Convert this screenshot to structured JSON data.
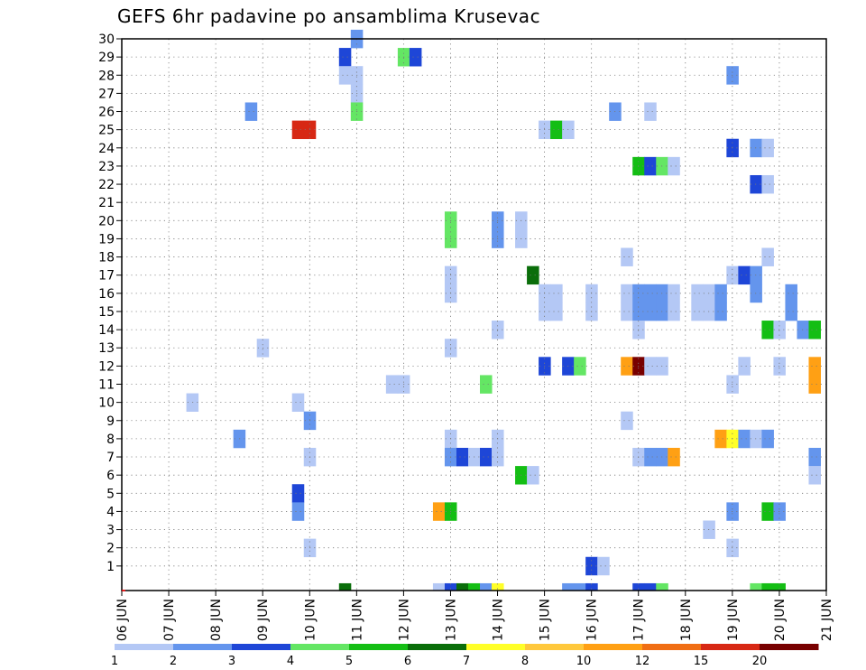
{
  "title": "GEFS 6hr padavine po ansamblima Krusevac",
  "colors": {
    "c1": "#b4c8f5",
    "c2": "#6495ed",
    "c3": "#1e46d7",
    "c4": "#64e664",
    "c5": "#14be14",
    "c6": "#0a6e0a",
    "c7": "#ffff28",
    "c8": "#ffc83c",
    "c10": "#ffa014",
    "c12": "#f06e14",
    "c15": "#d72814",
    "c20": "#780000"
  },
  "chart_data": {
    "type": "heatmap",
    "title": "GEFS 6hr padavine po ansamblima Krusevac",
    "xlabel": "",
    "ylabel": "",
    "x_tick_labels": [
      "06 JUN",
      "07 JUN",
      "08 JUN",
      "09 JUN",
      "10 JUN",
      "11 JUN",
      "12 JUN",
      "13 JUN",
      "14 JUN",
      "15 JUN",
      "16 JUN",
      "17 JUN",
      "18 JUN",
      "19 JUN",
      "20 JUN",
      "21 JUN"
    ],
    "x_range_days": [
      0,
      15
    ],
    "y_tick_labels": [
      "1",
      "2",
      "3",
      "4",
      "5",
      "6",
      "7",
      "8",
      "9",
      "10",
      "11",
      "12",
      "13",
      "14",
      "15",
      "16",
      "17",
      "18",
      "19",
      "20",
      "21",
      "22",
      "23",
      "24",
      "25",
      "26",
      "27",
      "28",
      "29",
      "30"
    ],
    "y_range": [
      0,
      30
    ],
    "grid": true,
    "legend": {
      "position": "bottom",
      "levels": [
        "1",
        "2",
        "3",
        "4",
        "5",
        "6",
        "7",
        "8",
        "10",
        "12",
        "15",
        "20"
      ],
      "colors": [
        "c1",
        "c2",
        "c3",
        "c4",
        "c5",
        "c6",
        "c7",
        "c8",
        "c10",
        "c12",
        "c15",
        "c20"
      ]
    },
    "cells": [
      {
        "m": 30,
        "t": [
          [
            5.0,
            "c2"
          ]
        ]
      },
      {
        "m": 29,
        "t": [
          [
            4.75,
            "c3"
          ],
          [
            6.0,
            "c4"
          ],
          [
            6.25,
            "c3"
          ]
        ]
      },
      {
        "m": 28,
        "t": [
          [
            4.75,
            "c1"
          ],
          [
            5.0,
            "c1"
          ],
          [
            13.0,
            "c2"
          ]
        ]
      },
      {
        "m": 27,
        "t": [
          [
            5.0,
            "c1"
          ]
        ]
      },
      {
        "m": 26,
        "t": [
          [
            2.75,
            "c2"
          ],
          [
            5.0,
            "c4"
          ],
          [
            10.5,
            "c2"
          ],
          [
            11.25,
            "c1"
          ]
        ]
      },
      {
        "m": 25,
        "t": [
          [
            3.75,
            "c15"
          ],
          [
            4.0,
            "c15"
          ],
          [
            9.0,
            "c1"
          ],
          [
            9.25,
            "c5"
          ],
          [
            9.5,
            "c1"
          ]
        ]
      },
      {
        "m": 24,
        "t": [
          [
            13.0,
            "c3"
          ],
          [
            13.5,
            "c2"
          ],
          [
            13.75,
            "c1"
          ]
        ]
      },
      {
        "m": 23,
        "t": [
          [
            11.0,
            "c5"
          ],
          [
            11.25,
            "c3"
          ],
          [
            11.5,
            "c4"
          ],
          [
            11.75,
            "c1"
          ]
        ]
      },
      {
        "m": 22,
        "t": [
          [
            13.5,
            "c3"
          ],
          [
            13.75,
            "c1"
          ]
        ]
      },
      {
        "m": 20,
        "t": [
          [
            7.0,
            "c4"
          ],
          [
            8.0,
            "c2"
          ],
          [
            8.5,
            "c1"
          ]
        ]
      },
      {
        "m": 19,
        "t": [
          [
            7.0,
            "c4"
          ],
          [
            8.0,
            "c2"
          ],
          [
            8.5,
            "c1"
          ]
        ]
      },
      {
        "m": 18,
        "t": [
          [
            10.75,
            "c1"
          ],
          [
            13.75,
            "c1"
          ]
        ]
      },
      {
        "m": 17,
        "t": [
          [
            7.0,
            "c1"
          ],
          [
            8.75,
            "c6"
          ],
          [
            13.0,
            "c1"
          ],
          [
            13.25,
            "c3"
          ],
          [
            13.5,
            "c2"
          ]
        ]
      },
      {
        "m": 16,
        "t": [
          [
            7.0,
            "c1"
          ],
          [
            9.0,
            "c1"
          ],
          [
            9.25,
            "c1"
          ],
          [
            10.0,
            "c1"
          ],
          [
            10.75,
            "c1"
          ],
          [
            11.0,
            "c2"
          ],
          [
            11.25,
            "c2"
          ],
          [
            11.5,
            "c2"
          ],
          [
            11.75,
            "c1"
          ],
          [
            12.25,
            "c1"
          ],
          [
            12.5,
            "c1"
          ],
          [
            12.75,
            "c2"
          ],
          [
            13.5,
            "c2"
          ],
          [
            14.25,
            "c2"
          ]
        ]
      },
      {
        "m": 15,
        "t": [
          [
            9.0,
            "c1"
          ],
          [
            9.25,
            "c1"
          ],
          [
            10.0,
            "c1"
          ],
          [
            10.75,
            "c1"
          ],
          [
            11.0,
            "c2"
          ],
          [
            11.25,
            "c2"
          ],
          [
            11.5,
            "c2"
          ],
          [
            11.75,
            "c1"
          ],
          [
            12.25,
            "c1"
          ],
          [
            12.5,
            "c1"
          ],
          [
            12.75,
            "c2"
          ],
          [
            14.25,
            "c2"
          ]
        ]
      },
      {
        "m": 14,
        "t": [
          [
            8.0,
            "c1"
          ],
          [
            11.0,
            "c1"
          ],
          [
            13.75,
            "c5"
          ],
          [
            14.0,
            "c1"
          ],
          [
            14.5,
            "c2"
          ],
          [
            14.75,
            "c5"
          ]
        ]
      },
      {
        "m": 13,
        "t": [
          [
            3.0,
            "c1"
          ],
          [
            7.0,
            "c1"
          ]
        ]
      },
      {
        "m": 12,
        "t": [
          [
            9.0,
            "c3"
          ],
          [
            9.5,
            "c3"
          ],
          [
            9.75,
            "c4"
          ],
          [
            10.75,
            "c10"
          ],
          [
            11.0,
            "c20"
          ],
          [
            11.25,
            "c1"
          ],
          [
            11.5,
            "c1"
          ],
          [
            13.25,
            "c1"
          ],
          [
            14.0,
            "c1"
          ],
          [
            14.75,
            "c10"
          ]
        ]
      },
      {
        "m": 11,
        "t": [
          [
            5.75,
            "c1"
          ],
          [
            6.0,
            "c1"
          ],
          [
            7.75,
            "c4"
          ],
          [
            13.0,
            "c1"
          ],
          [
            14.75,
            "c10"
          ]
        ]
      },
      {
        "m": 10,
        "t": [
          [
            1.5,
            "c1"
          ],
          [
            3.75,
            "c1"
          ]
        ]
      },
      {
        "m": 9,
        "t": [
          [
            4.0,
            "c2"
          ],
          [
            10.75,
            "c1"
          ]
        ]
      },
      {
        "m": 8,
        "t": [
          [
            2.5,
            "c2"
          ],
          [
            7.0,
            "c1"
          ],
          [
            8.0,
            "c1"
          ],
          [
            12.75,
            "c10"
          ],
          [
            13.0,
            "c7"
          ],
          [
            13.25,
            "c2"
          ],
          [
            13.5,
            "c1"
          ],
          [
            13.75,
            "c2"
          ]
        ]
      },
      {
        "m": 7,
        "t": [
          [
            4.0,
            "c1"
          ],
          [
            7.0,
            "c2"
          ],
          [
            7.25,
            "c3"
          ],
          [
            7.5,
            "c1"
          ],
          [
            7.75,
            "c3"
          ],
          [
            8.0,
            "c1"
          ],
          [
            11.0,
            "c1"
          ],
          [
            11.25,
            "c2"
          ],
          [
            11.5,
            "c2"
          ],
          [
            11.75,
            "c10"
          ],
          [
            14.75,
            "c2"
          ]
        ]
      },
      {
        "m": 6,
        "t": [
          [
            8.5,
            "c5"
          ],
          [
            8.75,
            "c1"
          ],
          [
            14.75,
            "c1"
          ]
        ]
      },
      {
        "m": 5,
        "t": [
          [
            3.75,
            "c3"
          ]
        ]
      },
      {
        "m": 4,
        "t": [
          [
            3.75,
            "c2"
          ],
          [
            6.75,
            "c10"
          ],
          [
            7.0,
            "c5"
          ],
          [
            13.0,
            "c2"
          ],
          [
            13.75,
            "c5"
          ],
          [
            14.0,
            "c2"
          ]
        ]
      },
      {
        "m": 3,
        "t": [
          [
            12.5,
            "c1"
          ]
        ]
      },
      {
        "m": 2,
        "t": [
          [
            4.0,
            "c1"
          ],
          [
            13.0,
            "c1"
          ]
        ]
      },
      {
        "m": 1,
        "t": [
          [
            10.0,
            "c3"
          ],
          [
            10.25,
            "c1"
          ]
        ]
      },
      {
        "m": 0,
        "t": [
          [
            4.75,
            "c6"
          ],
          [
            6.75,
            "c1"
          ],
          [
            7.0,
            "c3"
          ],
          [
            7.25,
            "c6"
          ],
          [
            7.5,
            "c5"
          ],
          [
            7.75,
            "c2"
          ],
          [
            8.0,
            "c7"
          ],
          [
            9.5,
            "c2"
          ],
          [
            9.75,
            "c2"
          ],
          [
            10.0,
            "c3"
          ],
          [
            11.0,
            "c3"
          ],
          [
            11.25,
            "c3"
          ],
          [
            11.5,
            "c4"
          ],
          [
            13.5,
            "c4"
          ],
          [
            13.75,
            "c5"
          ],
          [
            14.0,
            "c5"
          ]
        ]
      }
    ]
  }
}
